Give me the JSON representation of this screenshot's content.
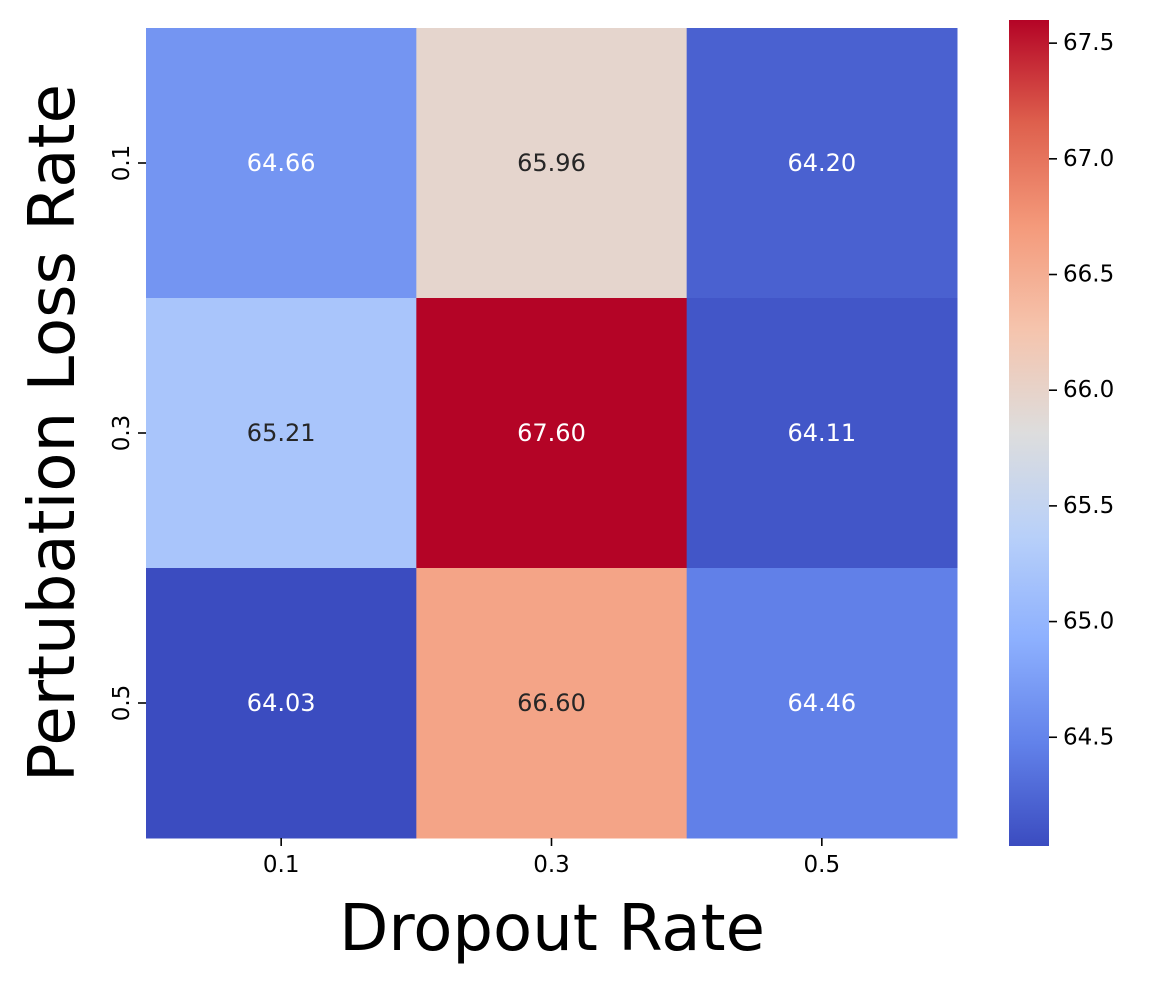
{
  "chart_data": {
    "type": "heatmap",
    "title": "",
    "xlabel": "Dropout Rate",
    "ylabel": "Pertubation Loss Rate",
    "x_categories": [
      "0.1",
      "0.3",
      "0.5"
    ],
    "y_categories": [
      "0.1",
      "0.3",
      "0.5"
    ],
    "values": [
      [
        64.66,
        65.96,
        64.2
      ],
      [
        65.21,
        67.6,
        64.11
      ],
      [
        64.03,
        66.6,
        64.46
      ]
    ],
    "value_labels": [
      [
        "64.66",
        "65.96",
        "64.20"
      ],
      [
        "65.21",
        "67.60",
        "64.11"
      ],
      [
        "64.03",
        "66.60",
        "64.46"
      ]
    ],
    "colormap": "coolwarm",
    "vmin": 64.03,
    "vmax": 67.6,
    "colorbar_ticks": [
      64.5,
      65.0,
      65.5,
      66.0,
      66.5,
      67.0,
      67.5
    ],
    "colorbar_tick_labels": [
      "64.5",
      "65.0",
      "65.5",
      "66.0",
      "66.5",
      "67.0",
      "67.5"
    ]
  }
}
